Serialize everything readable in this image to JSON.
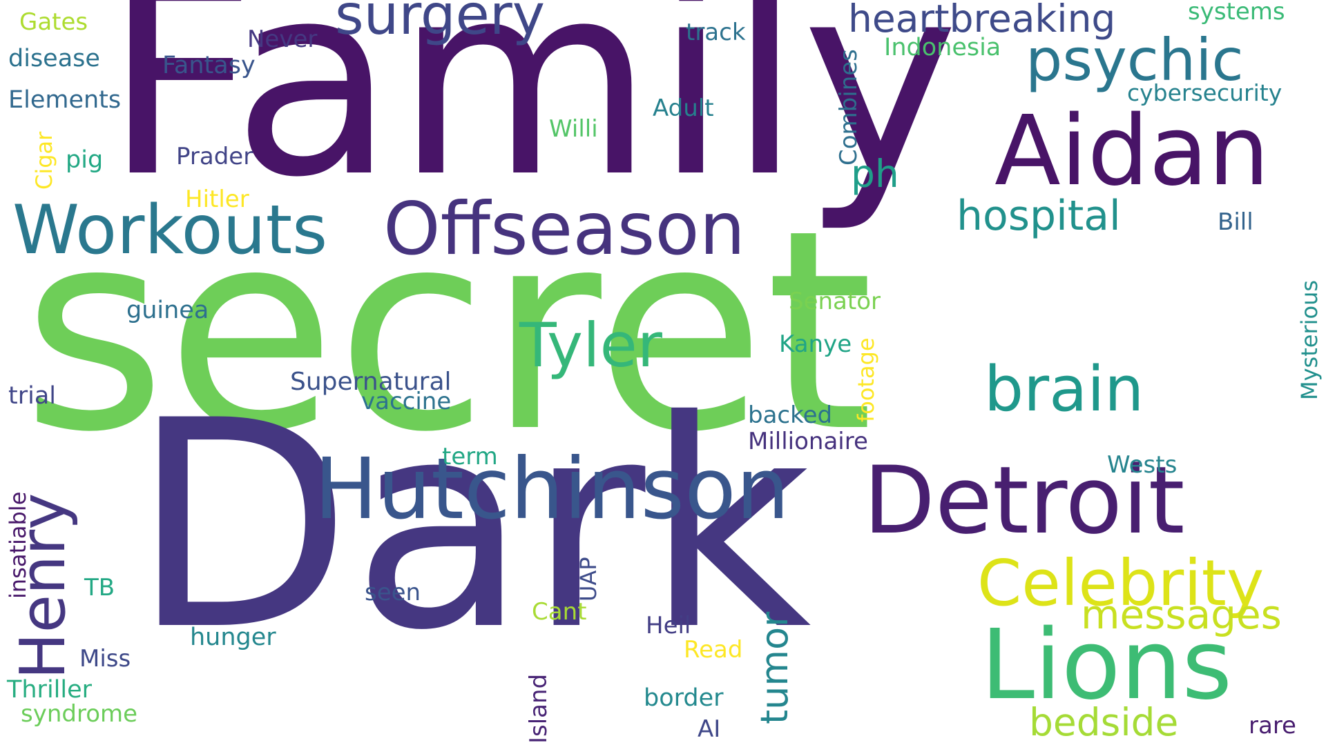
{
  "words": [
    {
      "text": "secret",
      "color": "#6ece58"
    },
    {
      "text": "Dark",
      "color": "#453781"
    },
    {
      "text": "Family",
      "color": "#481467"
    },
    {
      "text": "Aidan",
      "color": "#481467"
    },
    {
      "text": "Hutchinson",
      "color": "#39568c"
    },
    {
      "text": "Detroit",
      "color": "#481f70"
    },
    {
      "text": "Offseason",
      "color": "#46337e"
    },
    {
      "text": "Workouts",
      "color": "#2a788e"
    },
    {
      "text": "Lions",
      "color": "#3dbc74"
    },
    {
      "text": "Celebrity",
      "color": "#dde318"
    },
    {
      "text": "brain",
      "color": "#1f988b"
    },
    {
      "text": "Tyler",
      "color": "#35b779"
    },
    {
      "text": "psychic",
      "color": "#2a768e"
    },
    {
      "text": "surgery",
      "color": "#3f4788"
    },
    {
      "text": "Henry",
      "color": "#453781"
    },
    {
      "text": "heartbreaking",
      "color": "#3e4a89"
    },
    {
      "text": "hospital",
      "color": "#21918c"
    },
    {
      "text": "messages",
      "color": "#c8e020"
    },
    {
      "text": "bedside",
      "color": "#a5db36"
    },
    {
      "text": "tumor",
      "color": "#24868e"
    },
    {
      "text": "ph",
      "color": "#1f9e89"
    },
    {
      "text": "Gates",
      "color": "#addc30"
    },
    {
      "text": "Never",
      "color": "#453882"
    },
    {
      "text": "track",
      "color": "#2c728e"
    },
    {
      "text": "systems",
      "color": "#3aba76"
    },
    {
      "text": "disease",
      "color": "#2c728e"
    },
    {
      "text": "Fantasy",
      "color": "#39558c"
    },
    {
      "text": "Indonesia",
      "color": "#4ac16d"
    },
    {
      "text": "Combines",
      "color": "#2e6f8e"
    },
    {
      "text": "cybersecurity",
      "color": "#26828e"
    },
    {
      "text": "Elements",
      "color": "#31688e"
    },
    {
      "text": "Adult",
      "color": "#26818e"
    },
    {
      "text": "Willi",
      "color": "#54c568"
    },
    {
      "text": "Cigar",
      "color": "#fde725"
    },
    {
      "text": "pig",
      "color": "#22a884"
    },
    {
      "text": "Prader",
      "color": "#414487"
    },
    {
      "text": "Hitler",
      "color": "#fde725"
    },
    {
      "text": "Bill",
      "color": "#33638d"
    },
    {
      "text": "Mysterious",
      "color": "#21908d"
    },
    {
      "text": "Senator",
      "color": "#7ad151"
    },
    {
      "text": "guinea",
      "color": "#2d708e"
    },
    {
      "text": "Kanye",
      "color": "#20a486"
    },
    {
      "text": "footage",
      "color": "#fde725"
    },
    {
      "text": "Supernatural",
      "color": "#3b528b"
    },
    {
      "text": "vaccine",
      "color": "#2c728e"
    },
    {
      "text": "trial",
      "color": "#404688"
    },
    {
      "text": "backed",
      "color": "#2c728e"
    },
    {
      "text": "Millionaire",
      "color": "#46327e"
    },
    {
      "text": "term",
      "color": "#22a785"
    },
    {
      "text": "Wests",
      "color": "#25848e"
    },
    {
      "text": "insatiable",
      "color": "#48186a"
    },
    {
      "text": "UAP",
      "color": "#3e4c8a"
    },
    {
      "text": "TB",
      "color": "#22a884"
    },
    {
      "text": "seen",
      "color": "#3a548c"
    },
    {
      "text": "Cant",
      "color": "#a8db34"
    },
    {
      "text": "Heil",
      "color": "#433e85"
    },
    {
      "text": "hunger",
      "color": "#24878e"
    },
    {
      "text": "Read",
      "color": "#fde725"
    },
    {
      "text": "Miss",
      "color": "#3e4989"
    },
    {
      "text": "Thriller",
      "color": "#27ad81"
    },
    {
      "text": "Island",
      "color": "#482475"
    },
    {
      "text": "border",
      "color": "#23898e"
    },
    {
      "text": "syndrome",
      "color": "#6ccd5a"
    },
    {
      "text": "AI",
      "color": "#3f4788"
    },
    {
      "text": "rare",
      "color": "#481d6f"
    }
  ]
}
